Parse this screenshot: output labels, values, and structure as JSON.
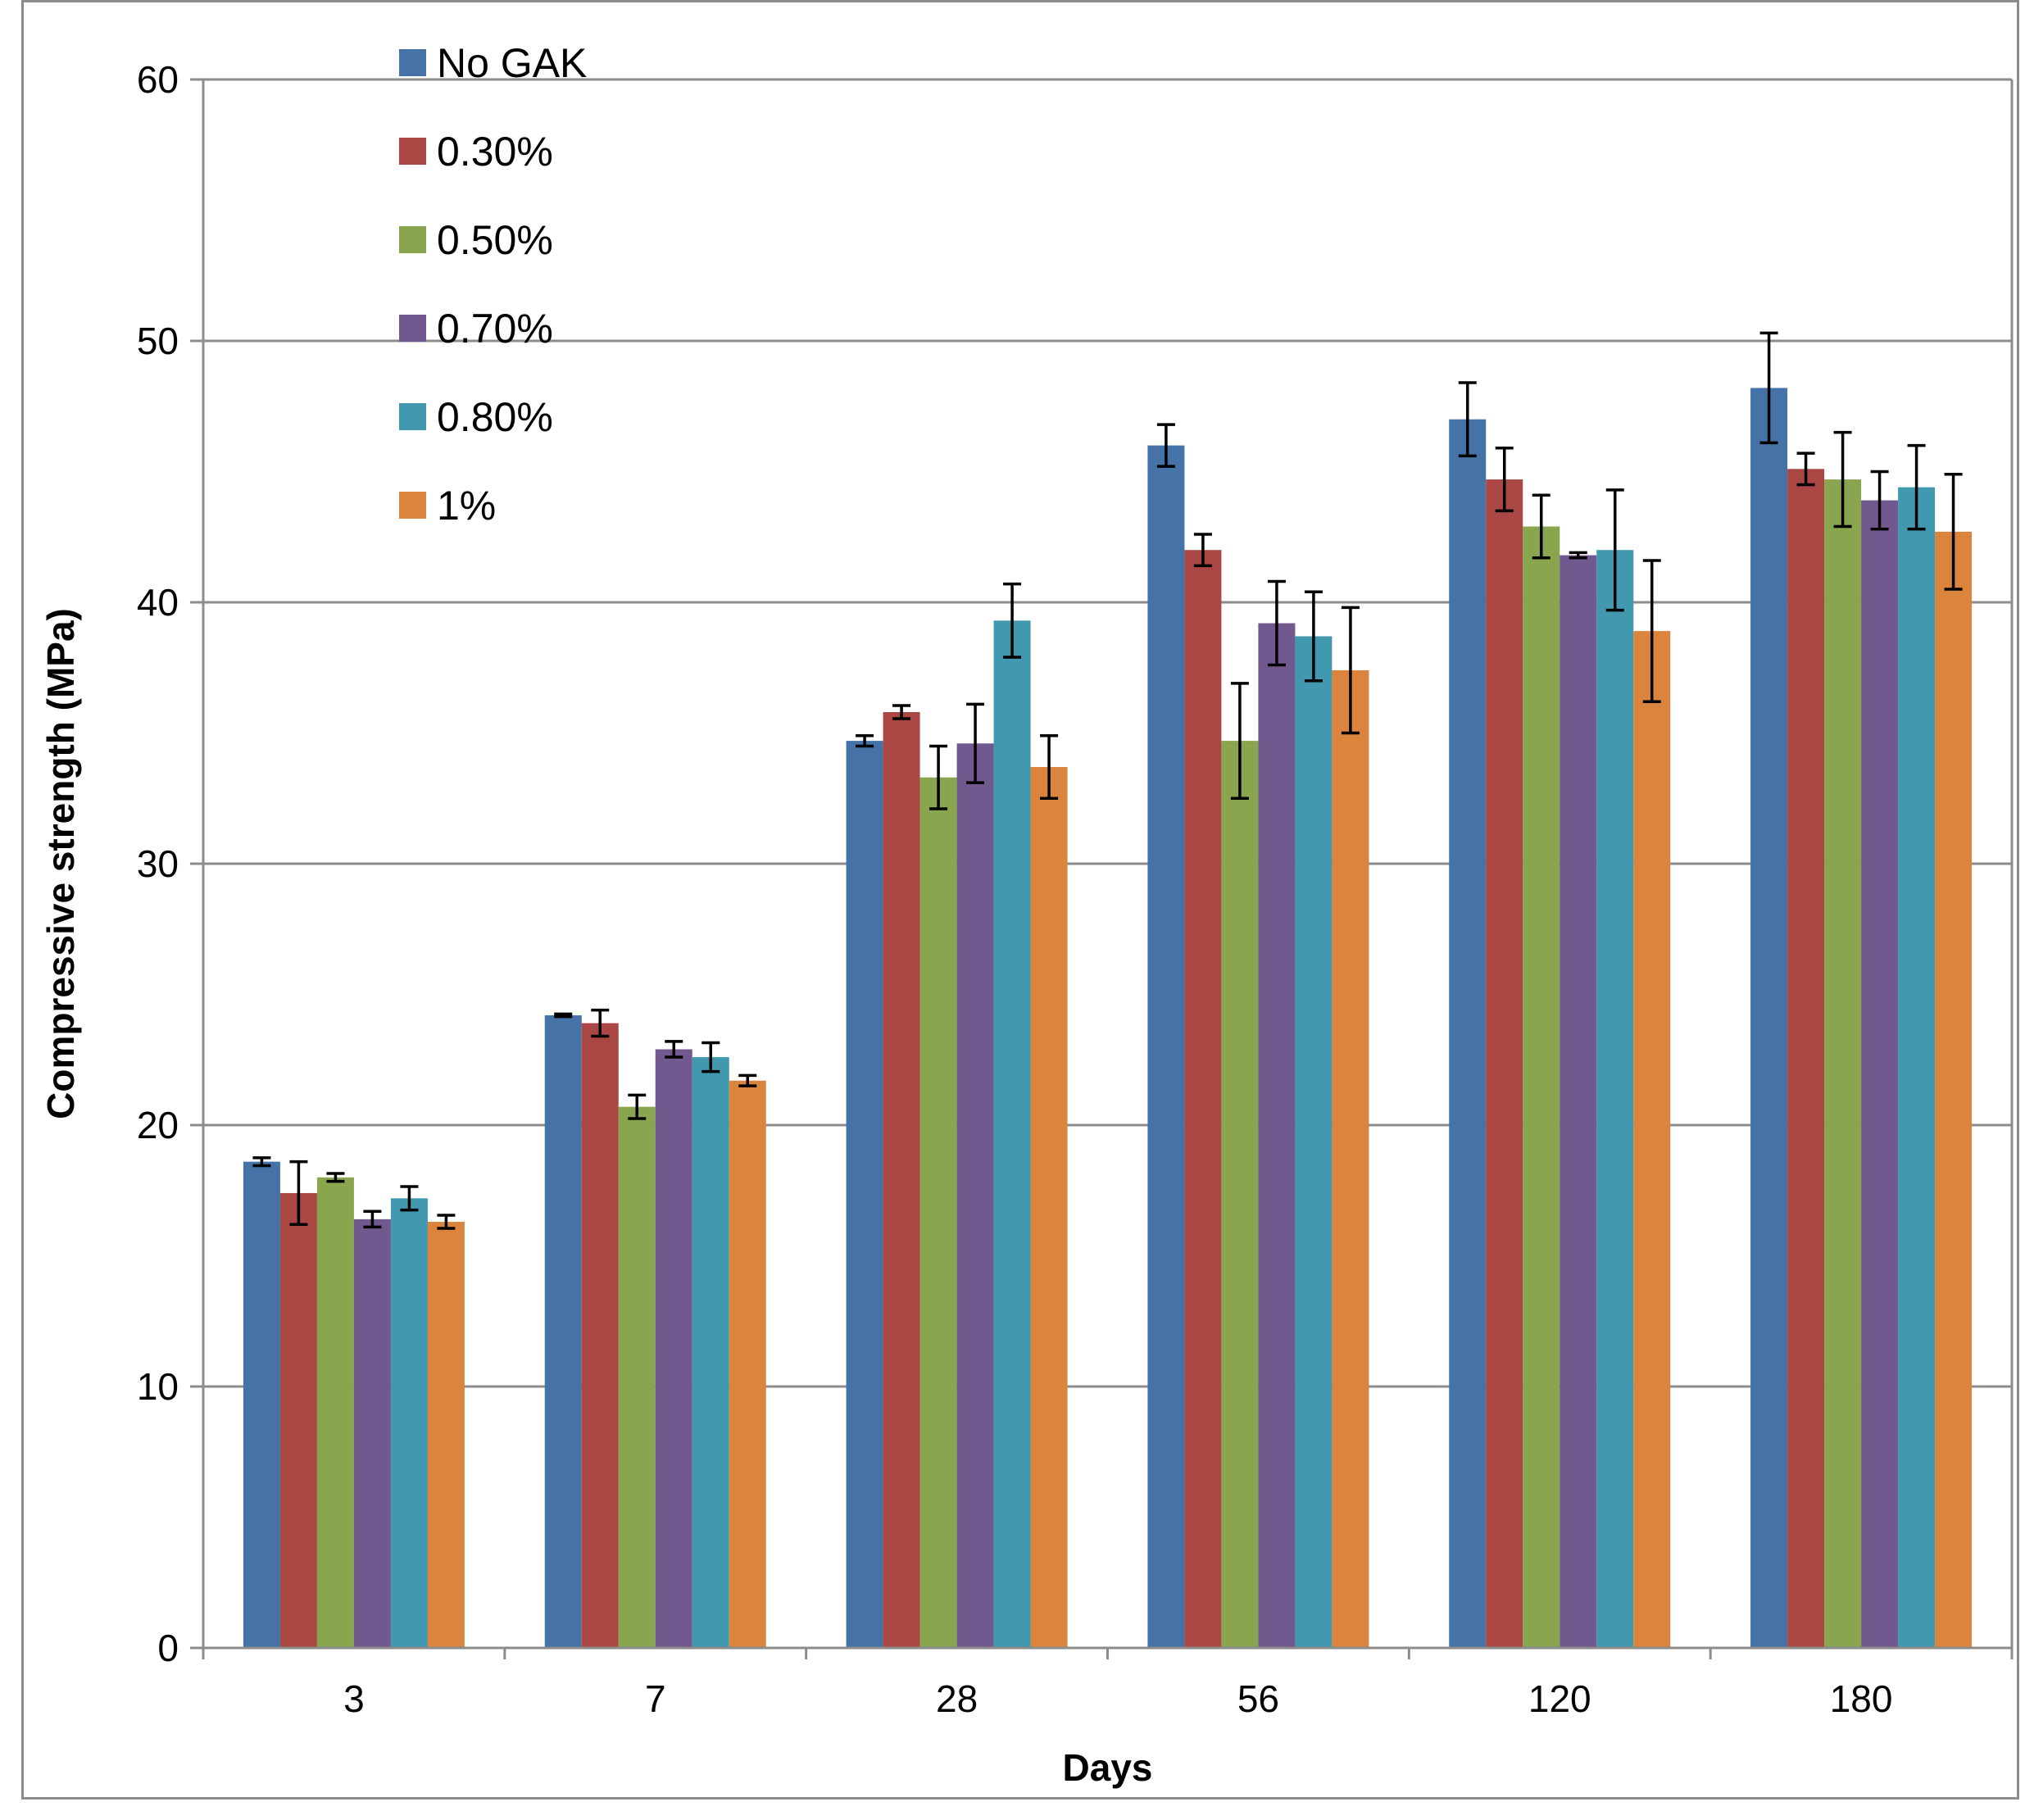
{
  "chart_data": {
    "type": "bar",
    "title": "",
    "xlabel": "Days",
    "ylabel": "Compressive strength (MPa)",
    "ylim": [
      0,
      60
    ],
    "yticks": [
      "0",
      "10",
      "20",
      "30",
      "40",
      "50",
      "60"
    ],
    "grid": true,
    "legend_position": "top-left",
    "categories": [
      "3",
      "7",
      "28",
      "56",
      "120",
      "180"
    ],
    "series": [
      {
        "name": "No GAK",
        "color": "#4572A7",
        "values": [
          18.6,
          24.2,
          34.7,
          46.0,
          47.0,
          48.2
        ],
        "errors": [
          0.15,
          0.05,
          0.2,
          0.8,
          1.4,
          2.1
        ]
      },
      {
        "name": "0.30%",
        "color": "#AA4643",
        "values": [
          17.4,
          23.9,
          35.8,
          42.0,
          44.7,
          45.1
        ],
        "errors": [
          1.2,
          0.5,
          0.25,
          0.6,
          1.2,
          0.6
        ]
      },
      {
        "name": "0.50%",
        "color": "#89A54E",
        "values": [
          18.0,
          20.7,
          33.3,
          34.7,
          42.9,
          44.7
        ],
        "errors": [
          0.15,
          0.45,
          1.2,
          2.2,
          1.2,
          1.8
        ]
      },
      {
        "name": "0.70%",
        "color": "#71588F",
        "values": [
          16.4,
          22.9,
          34.6,
          39.2,
          41.8,
          43.9
        ],
        "errors": [
          0.3,
          0.3,
          1.5,
          1.6,
          0.1,
          1.1
        ]
      },
      {
        "name": "0.80%",
        "color": "#4198AF",
        "values": [
          17.2,
          22.6,
          39.3,
          38.7,
          42.0,
          44.4
        ],
        "errors": [
          0.45,
          0.55,
          1.4,
          1.7,
          2.3,
          1.6
        ]
      },
      {
        "name": "1%",
        "color": "#DB843D",
        "values": [
          16.3,
          21.7,
          33.7,
          37.4,
          38.9,
          42.7
        ],
        "errors": [
          0.25,
          0.2,
          1.2,
          2.4,
          2.7,
          2.2
        ]
      }
    ]
  }
}
